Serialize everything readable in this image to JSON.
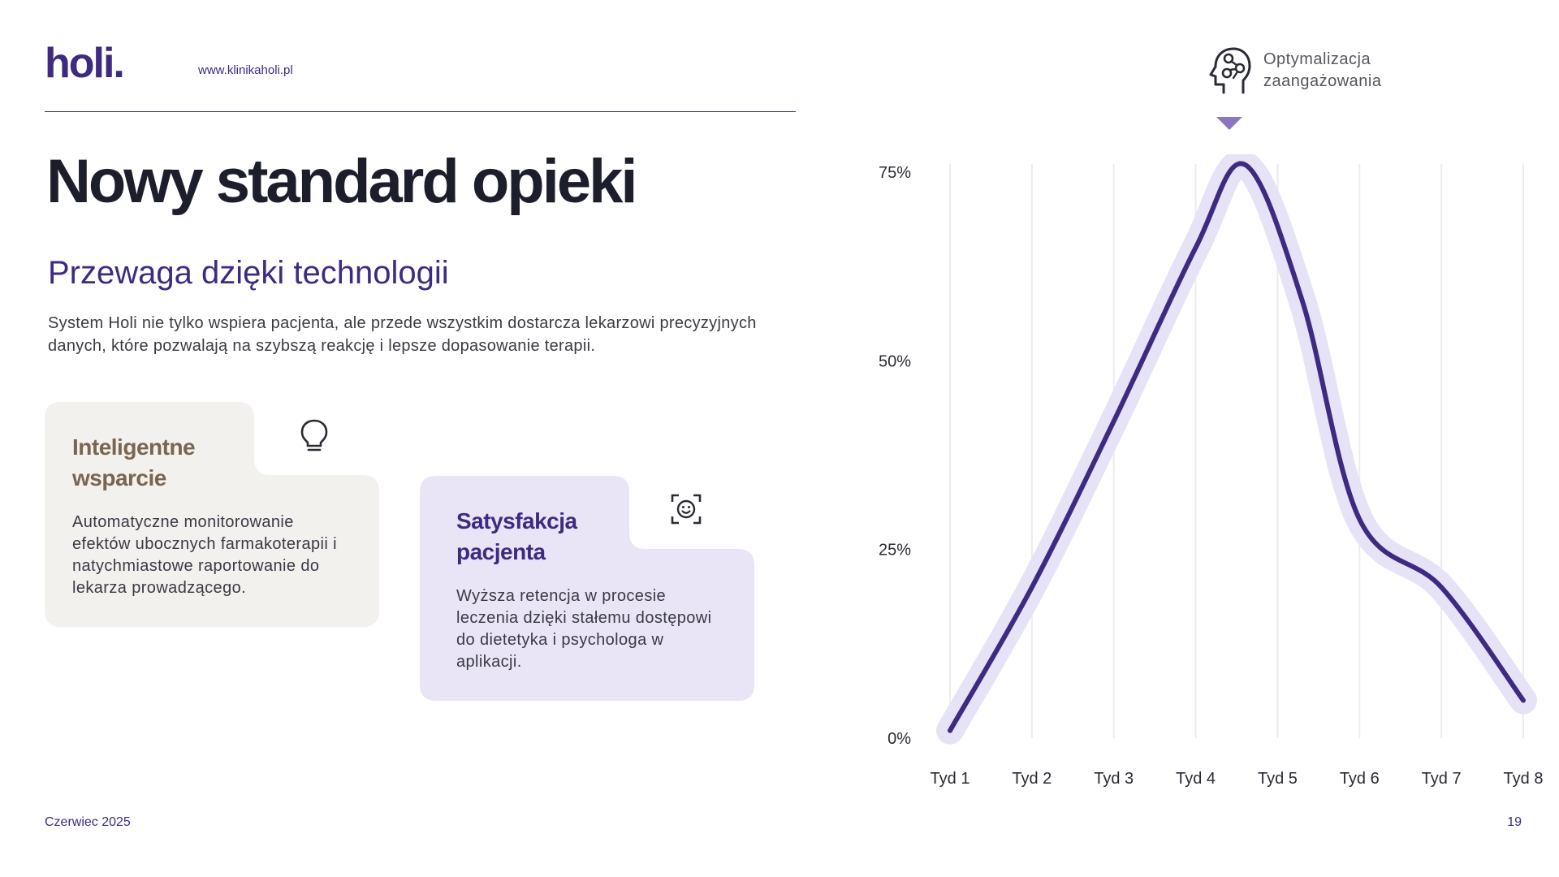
{
  "header": {
    "logo": "holi.",
    "website": "www.klinikaholi.pl"
  },
  "main": {
    "title": "Nowy standard opieki",
    "subtitle": "Przewaga dzięki technologii",
    "description": "System Holi nie tylko wspiera pacjenta, ale przede wszystkim dostarcza lekarzowi precyzyjnych danych, które pozwalają na szybszą reakcję i lepsze dopasowanie terapii."
  },
  "cards": [
    {
      "title_line1": "Inteligentne",
      "title_line2": "wsparcie",
      "text": "Automatyczne monitorowanie efektów ubocznych farmakoterapii i natychmiastowe raportowanie do lekarza prowadzącego.",
      "icon": "lightbulb-icon",
      "background": "#f3f1ee",
      "title_color": "#7a6650"
    },
    {
      "title_line1": "Satysfakcja",
      "title_line2": "pacjenta",
      "text": "Wyższa retencja w procesie leczenia dzięki stałemu dostępowi do dietetyka i psychologa w aplikacji.",
      "icon": "face-scan-icon",
      "background": "#e9e5f6",
      "title_color": "#3f2a82"
    }
  ],
  "legend": {
    "line1": "Optymalizacja",
    "line2": "zaangażowania",
    "icon": "head-gears-icon"
  },
  "chart_data": {
    "type": "line",
    "title": "",
    "xlabel": "",
    "ylabel": "",
    "categories": [
      "Tyd 1",
      "Tyd 2",
      "Tyd 3",
      "Tyd 4",
      "Tyd 5",
      "Tyd 6",
      "Tyd 7",
      "Tyd 8"
    ],
    "y_ticks": [
      "0%",
      "25%",
      "50%",
      "75%"
    ],
    "ylim": [
      0,
      75
    ],
    "grid": "vertical",
    "series": [
      {
        "name": "Optymalizacja zaangażowania",
        "color": "#3f2a82",
        "halo_color": "#e7e3f6",
        "points": [
          {
            "x": 1,
            "y": 1
          },
          {
            "x": 2,
            "y": 20
          },
          {
            "x": 3,
            "y": 42
          },
          {
            "x": 4,
            "y": 65
          },
          {
            "x": 4.6,
            "y": 76
          },
          {
            "x": 5.3,
            "y": 58
          },
          {
            "x": 6,
            "y": 29
          },
          {
            "x": 7,
            "y": 20
          },
          {
            "x": 8,
            "y": 5
          }
        ]
      }
    ]
  },
  "footer": {
    "date": "Czerwiec 2025",
    "page": "19"
  }
}
